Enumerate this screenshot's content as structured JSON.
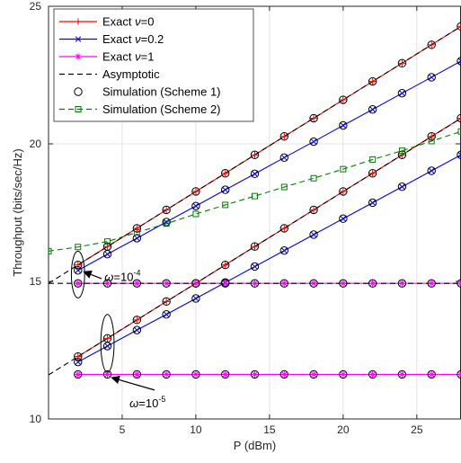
{
  "chart_data": {
    "type": "line",
    "xlabel": "P (dBm)",
    "ylabel": "Throughput (bits/sec/Hz)",
    "xlim": [
      0,
      28
    ],
    "ylim": [
      10,
      25
    ],
    "xticks": [
      5,
      10,
      15,
      20,
      25
    ],
    "yticks": [
      10,
      15,
      20,
      25
    ],
    "grid": true,
    "legend_position": "top-left",
    "colors": {
      "exact_nu0": "#ff0000",
      "exact_nu02": "#0000ff",
      "exact_nu1": "#ff00ff",
      "asymptotic": "#000000",
      "sim1": "#000000",
      "sim2": "#008000",
      "grid": "#dcdcdc",
      "axis": "#262626"
    },
    "legend": [
      {
        "label_main": "Exact ",
        "label_greek": "ν",
        "label_rest": "=0",
        "color": "#ff0000",
        "line": "solid",
        "marker": "plus"
      },
      {
        "label_main": "Exact ",
        "label_greek": "ν",
        "label_rest": "=0.2",
        "color": "#0000ff",
        "line": "solid",
        "marker": "x"
      },
      {
        "label_main": "Exact ",
        "label_greek": "ν",
        "label_rest": "=1",
        "color": "#ff00ff",
        "line": "solid",
        "marker": "star"
      },
      {
        "label_main": "Asymptotic",
        "label_greek": "",
        "label_rest": "",
        "color": "#000000",
        "line": "dashed",
        "marker": "none"
      },
      {
        "label_main": "Simulation (Scheme 1)",
        "label_greek": "",
        "label_rest": "",
        "color": "#000000",
        "line": "none",
        "marker": "circle"
      },
      {
        "label_main": "Simulation (Scheme 2)",
        "label_greek": "",
        "label_rest": "",
        "color": "#008000",
        "line": "dashed",
        "marker": "square"
      }
    ],
    "series": [
      {
        "key": "nu0_w1e-4",
        "color": "#ff0000",
        "line": "solid",
        "marker": "plus",
        "x": [
          2,
          4,
          6,
          8,
          10,
          12,
          14,
          16,
          18,
          20,
          22,
          24,
          26,
          28
        ],
        "y": [
          15.6,
          16.27,
          16.93,
          17.6,
          18.27,
          18.93,
          19.6,
          20.27,
          20.93,
          21.6,
          22.27,
          22.93,
          23.6,
          24.27
        ]
      },
      {
        "key": "nu0_w1e-5",
        "color": "#ff0000",
        "line": "solid",
        "marker": "plus",
        "x": [
          2,
          4,
          6,
          8,
          10,
          12,
          14,
          16,
          18,
          20,
          22,
          24,
          26,
          28
        ],
        "y": [
          12.27,
          12.93,
          13.6,
          14.27,
          14.93,
          15.6,
          16.27,
          16.93,
          17.6,
          18.27,
          18.93,
          19.6,
          20.27,
          20.93
        ]
      },
      {
        "key": "nu02_w1e-4",
        "color": "#0000ff",
        "line": "solid",
        "marker": "x",
        "x": [
          2,
          4,
          6,
          8,
          10,
          12,
          14,
          16,
          18,
          20,
          22,
          24,
          26,
          28
        ],
        "y": [
          15.4,
          15.99,
          16.57,
          17.16,
          17.74,
          18.33,
          18.91,
          19.5,
          20.08,
          20.67,
          21.25,
          21.84,
          22.42,
          23.01
        ]
      },
      {
        "key": "nu02_w1e-5",
        "color": "#0000ff",
        "line": "solid",
        "marker": "x",
        "x": [
          2,
          4,
          6,
          8,
          10,
          12,
          14,
          16,
          18,
          20,
          22,
          24,
          26,
          28
        ],
        "y": [
          12.07,
          12.65,
          13.23,
          13.8,
          14.38,
          14.96,
          15.54,
          16.12,
          16.7,
          17.28,
          17.86,
          18.44,
          19.02,
          19.6
        ]
      },
      {
        "key": "nu1_w1e-4",
        "color": "#ff00ff",
        "line": "solid",
        "marker": "star",
        "x": [
          2,
          4,
          6,
          8,
          10,
          12,
          14,
          16,
          18,
          20,
          22,
          24,
          26,
          28
        ],
        "y": [
          14.93,
          14.93,
          14.93,
          14.93,
          14.93,
          14.93,
          14.93,
          14.93,
          14.93,
          14.93,
          14.93,
          14.93,
          14.93,
          14.93
        ]
      },
      {
        "key": "nu1_w1e-5",
        "color": "#ff00ff",
        "line": "solid",
        "marker": "star",
        "x": [
          2,
          4,
          6,
          8,
          10,
          12,
          14,
          16,
          18,
          20,
          22,
          24,
          26,
          28
        ],
        "y": [
          11.62,
          11.62,
          11.62,
          11.62,
          11.62,
          11.62,
          11.62,
          11.62,
          11.62,
          11.62,
          11.62,
          11.62,
          11.62,
          11.62
        ]
      },
      {
        "key": "asym_a",
        "color": "#000000",
        "line": "dashed",
        "marker": "none",
        "x": [
          0,
          28
        ],
        "y": [
          14.93,
          24.27
        ]
      },
      {
        "key": "asym_b",
        "color": "#000000",
        "line": "dashed",
        "marker": "none",
        "x": [
          0,
          28
        ],
        "y": [
          11.6,
          20.93
        ]
      },
      {
        "key": "asym_c",
        "color": "#000000",
        "line": "dashed",
        "marker": "none",
        "x": [
          0,
          28
        ],
        "y": [
          14.93,
          14.93
        ]
      },
      {
        "key": "sim1_a",
        "color": "#000000",
        "line": "none",
        "marker": "circle",
        "x": [
          2,
          4,
          6,
          8,
          10,
          12,
          14,
          16,
          18,
          20,
          22,
          24,
          26,
          28
        ],
        "y": [
          15.6,
          16.27,
          16.93,
          17.6,
          18.27,
          18.93,
          19.6,
          20.27,
          20.93,
          21.6,
          22.27,
          22.93,
          23.6,
          24.27
        ]
      },
      {
        "key": "sim1_b",
        "color": "#000000",
        "line": "none",
        "marker": "circle",
        "x": [
          2,
          4,
          6,
          8,
          10,
          12,
          14,
          16,
          18,
          20,
          22,
          24,
          26,
          28
        ],
        "y": [
          15.4,
          15.99,
          16.57,
          17.16,
          17.74,
          18.33,
          18.91,
          19.5,
          20.08,
          20.67,
          21.25,
          21.84,
          22.42,
          23.01
        ]
      },
      {
        "key": "sim1_c",
        "color": "#000000",
        "line": "none",
        "marker": "circle",
        "x": [
          2,
          4,
          6,
          8,
          10,
          12,
          14,
          16,
          18,
          20,
          22,
          24,
          26,
          28
        ],
        "y": [
          12.27,
          12.93,
          13.6,
          14.27,
          14.93,
          15.6,
          16.27,
          16.93,
          17.6,
          18.27,
          18.93,
          19.6,
          20.27,
          20.93
        ]
      },
      {
        "key": "sim1_d",
        "color": "#000000",
        "line": "none",
        "marker": "circle",
        "x": [
          2,
          4,
          6,
          8,
          10,
          12,
          14,
          16,
          18,
          20,
          22,
          24,
          26,
          28
        ],
        "y": [
          12.07,
          12.65,
          13.23,
          13.8,
          14.38,
          14.96,
          15.54,
          16.12,
          16.7,
          17.28,
          17.86,
          18.44,
          19.02,
          19.6
        ]
      },
      {
        "key": "sim1_e",
        "color": "#000000",
        "line": "none",
        "marker": "circle",
        "x": [
          2,
          4,
          6,
          8,
          10,
          12,
          14,
          16,
          18,
          20,
          22,
          24,
          26,
          28
        ],
        "y": [
          14.93,
          14.93,
          14.93,
          14.93,
          14.93,
          14.93,
          14.93,
          14.93,
          14.93,
          14.93,
          14.93,
          14.93,
          14.93,
          14.93
        ]
      },
      {
        "key": "sim1_f",
        "color": "#000000",
        "line": "none",
        "marker": "circle",
        "x": [
          2,
          4,
          6,
          8,
          10,
          12,
          14,
          16,
          18,
          20,
          22,
          24,
          26,
          28
        ],
        "y": [
          11.62,
          11.62,
          11.62,
          11.62,
          11.62,
          11.62,
          11.62,
          11.62,
          11.62,
          11.62,
          11.62,
          11.62,
          11.62,
          11.62
        ]
      },
      {
        "key": "sim2",
        "color": "#008000",
        "line": "dashed",
        "marker": "square",
        "x": [
          0,
          2,
          4,
          6,
          8,
          10,
          12,
          14,
          16,
          18,
          20,
          22,
          24,
          26,
          28
        ],
        "y": [
          16.1,
          16.25,
          16.45,
          16.78,
          17.1,
          17.45,
          17.78,
          18.1,
          18.43,
          18.75,
          19.08,
          19.43,
          19.75,
          20.1,
          20.45
        ]
      }
    ],
    "annotations": [
      {
        "text_greek": "ω",
        "text_eq": "=10",
        "text_exp": "-4",
        "ellipse_x": 2,
        "ellipse_y": 15.25,
        "ellipse_rx": 0.45,
        "ellipse_ry": 0.85,
        "text_at": [
          3.8,
          15.15
        ],
        "arrow_from": [
          3.6,
          15.1
        ],
        "arrow_to": [
          2.4,
          15.35
        ]
      },
      {
        "text_greek": "ω",
        "text_eq": "=10",
        "text_exp": "-5",
        "ellipse_x": 4,
        "ellipse_y": 12.75,
        "ellipse_rx": 0.45,
        "ellipse_ry": 1.05,
        "text_at": [
          5.5,
          10.55
        ],
        "arrow_from": [
          7.2,
          11.05
        ],
        "arrow_to": [
          4.3,
          11.5
        ]
      }
    ]
  }
}
